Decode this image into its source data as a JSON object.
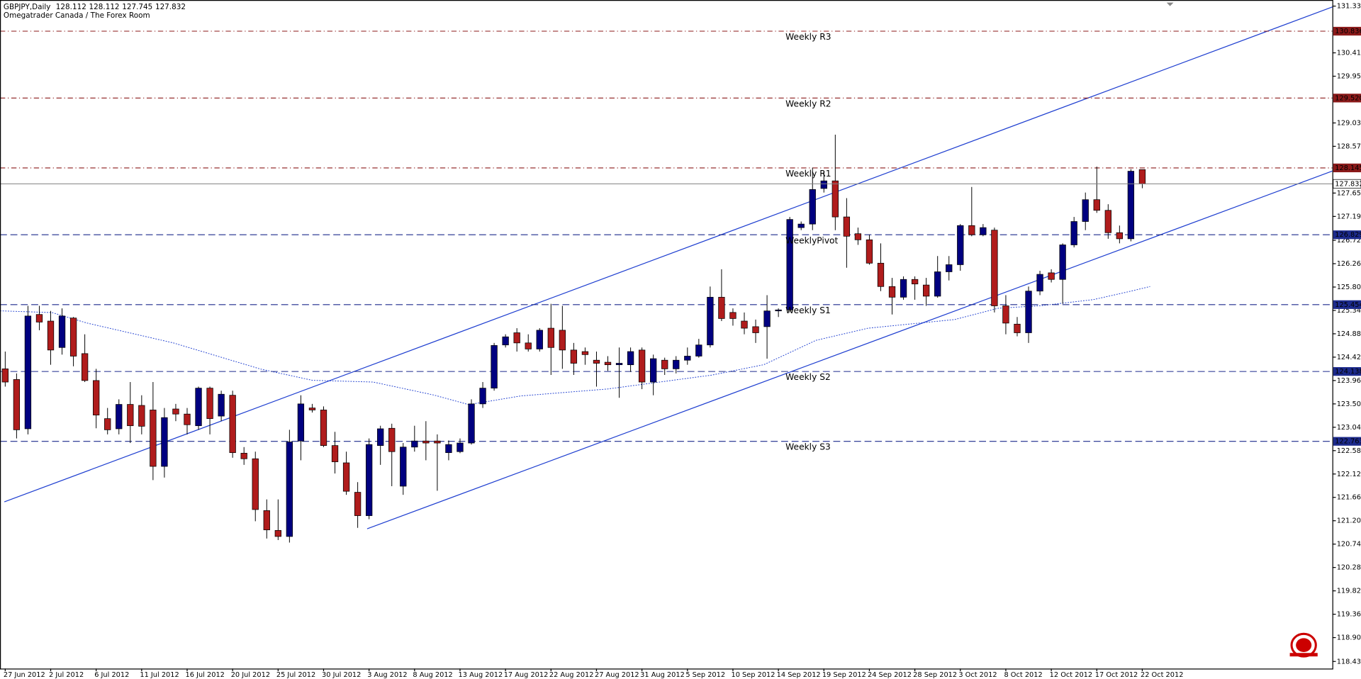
{
  "chart_data": {
    "type": "candlestick",
    "title": "GBPJPY,Daily",
    "subtitle": "Omegatrader Canada / The Forex Room",
    "up_color": "#000080",
    "down_color": "#b01c1c",
    "categories": [
      "27 Jun 2012",
      null,
      null,
      null,
      "2 Jul 2012",
      null,
      null,
      null,
      "6 Jul 2012",
      null,
      null,
      null,
      "11 Jul 2012",
      null,
      null,
      null,
      "16 Jul 2012",
      null,
      null,
      null,
      "20 Jul 2012",
      null,
      null,
      null,
      "25 Jul 2012",
      null,
      null,
      null,
      "30 Jul 2012",
      null,
      null,
      null,
      "3 Aug 2012",
      null,
      null,
      null,
      "8 Aug 2012",
      null,
      null,
      null,
      "13 Aug 2012",
      null,
      null,
      null,
      "17 Aug 2012",
      null,
      null,
      null,
      "22 Aug 2012",
      null,
      null,
      null,
      "27 Aug 2012",
      null,
      null,
      null,
      "31 Aug 2012",
      null,
      null,
      null,
      "5 Sep 2012",
      null,
      null,
      null,
      "10 Sep 2012",
      null,
      null,
      null,
      "14 Sep 2012",
      null,
      null,
      null,
      "19 Sep 2012",
      null,
      null,
      null,
      "24 Sep 2012",
      null,
      null,
      null,
      "28 Sep 2012",
      null,
      null,
      null,
      "3 Oct 2012",
      null,
      null,
      null,
      "8 Oct 2012",
      null,
      null,
      null,
      "12 Oct 2012",
      null,
      null,
      null,
      "17 Oct 2012",
      null,
      null,
      null,
      "22 Oct 2012"
    ],
    "open": [
      124.19,
      123.98,
      123.01,
      125.26,
      125.13,
      124.61,
      125.19,
      124.49,
      123.96,
      123.21,
      123.01,
      123.49,
      123.47,
      123.38,
      122.27,
      123.4,
      123.3,
      123.07,
      123.81,
      123.26,
      123.67,
      122.53,
      122.42,
      121.4,
      121.01,
      120.89,
      122.77,
      123.42,
      123.38,
      122.68,
      122.34,
      121.76,
      121.3,
      122.68,
      123.02,
      121.88,
      122.65,
      122.77,
      122.77,
      122.54,
      122.56,
      122.73,
      123.5,
      123.81,
      124.66,
      124.9,
      124.7,
      124.58,
      124.99,
      124.95,
      124.56,
      124.53,
      124.36,
      124.32,
      124.27,
      124.27,
      124.56,
      123.93,
      124.36,
      124.19,
      124.36,
      124.44,
      124.66,
      125.6,
      125.3,
      125.13,
      125.02,
      125.02,
      125.33,
      125.35,
      126.97,
      127.04,
      127.74,
      127.89,
      127.18,
      126.85,
      126.73,
      126.27,
      125.81,
      125.6,
      125.95,
      125.84,
      125.62,
      126.1,
      126.24,
      127.01,
      126.83,
      126.92,
      125.43,
      125.07,
      124.9,
      125.72,
      126.08,
      125.95,
      126.63,
      127.09,
      127.52,
      127.31,
      126.87,
      126.75,
      128.112
    ],
    "high": [
      124.53,
      124.1,
      125.43,
      125.43,
      125.33,
      125.38,
      125.21,
      124.87,
      124.19,
      123.42,
      123.59,
      123.93,
      123.67,
      123.93,
      123.42,
      123.5,
      123.42,
      123.84,
      123.84,
      123.76,
      123.76,
      122.65,
      122.56,
      121.62,
      121.62,
      122.99,
      123.67,
      123.5,
      123.45,
      122.95,
      122.56,
      121.96,
      122.82,
      123.07,
      123.11,
      122.73,
      123.07,
      123.16,
      122.9,
      122.78,
      122.82,
      123.59,
      123.93,
      124.7,
      124.87,
      124.99,
      124.87,
      124.99,
      125.47,
      125.43,
      124.7,
      124.61,
      124.53,
      124.44,
      124.61,
      124.61,
      124.61,
      124.47,
      124.41,
      124.44,
      124.61,
      124.78,
      125.81,
      126.15,
      125.38,
      125.3,
      125.16,
      125.64,
      125.38,
      127.18,
      127.09,
      128.15,
      128.07,
      128.8,
      127.55,
      126.97,
      126.83,
      126.66,
      125.98,
      126.01,
      126.01,
      125.98,
      126.41,
      126.41,
      127.04,
      127.77,
      127.04,
      126.97,
      125.64,
      125.21,
      125.81,
      126.12,
      126.15,
      126.66,
      127.18,
      127.66,
      128.17,
      127.43,
      127.01,
      128.12,
      128.112
    ],
    "low": [
      123.84,
      122.82,
      122.9,
      124.95,
      124.27,
      124.47,
      124.24,
      123.93,
      123.02,
      122.9,
      122.9,
      122.73,
      122.9,
      122.0,
      122.05,
      123.16,
      122.9,
      122.99,
      122.9,
      123.16,
      122.44,
      122.3,
      121.19,
      120.85,
      120.82,
      120.77,
      122.39,
      123.33,
      122.65,
      122.13,
      121.71,
      121.06,
      121.23,
      122.3,
      121.88,
      121.71,
      122.56,
      122.39,
      121.79,
      122.39,
      122.53,
      122.7,
      123.42,
      123.76,
      124.61,
      124.53,
      124.53,
      124.53,
      124.07,
      124.19,
      124.07,
      124.27,
      123.84,
      124.15,
      123.62,
      124.13,
      123.79,
      123.67,
      124.07,
      124.1,
      124.27,
      124.41,
      124.61,
      125.13,
      125.04,
      124.87,
      124.7,
      124.39,
      125.21,
      125.3,
      126.92,
      126.92,
      127.66,
      126.92,
      126.18,
      126.63,
      126.24,
      125.72,
      125.26,
      125.55,
      125.55,
      125.43,
      125.59,
      125.93,
      126.12,
      126.8,
      126.8,
      125.3,
      124.87,
      124.83,
      124.7,
      125.64,
      125.89,
      125.47,
      126.58,
      126.92,
      127.26,
      126.75,
      126.66,
      126.7,
      127.745
    ],
    "close": [
      123.93,
      122.99,
      125.23,
      125.11,
      124.56,
      125.23,
      124.44,
      123.96,
      123.28,
      122.99,
      123.49,
      123.07,
      123.06,
      122.27,
      123.23,
      123.3,
      123.09,
      123.81,
      123.21,
      123.69,
      122.54,
      122.42,
      121.42,
      121.02,
      120.89,
      122.75,
      123.5,
      123.38,
      122.68,
      122.36,
      121.78,
      121.3,
      122.7,
      123.01,
      122.56,
      122.65,
      122.77,
      122.73,
      122.73,
      122.7,
      122.73,
      123.5,
      123.81,
      124.65,
      124.82,
      124.7,
      124.58,
      124.95,
      124.61,
      124.56,
      124.3,
      124.47,
      124.3,
      124.27,
      124.3,
      124.53,
      123.93,
      124.39,
      124.19,
      124.36,
      124.44,
      124.66,
      125.6,
      125.18,
      125.18,
      124.99,
      124.9,
      125.33,
      125.35,
      127.13,
      127.04,
      127.72,
      127.89,
      127.18,
      126.8,
      126.73,
      126.27,
      125.81,
      125.6,
      125.95,
      125.86,
      125.62,
      126.1,
      126.24,
      127.01,
      126.83,
      126.97,
      125.43,
      125.09,
      124.9,
      125.72,
      126.05,
      125.95,
      126.63,
      127.09,
      127.52,
      127.31,
      126.87,
      126.75,
      128.08,
      127.832
    ],
    "ylim": [
      118.29,
      131.45
    ],
    "yticks": [
      {
        "value": 131.33,
        "label": "131.330"
      },
      {
        "value": 130.41,
        "label": "130.410"
      },
      {
        "value": 129.95,
        "label": "129.950"
      },
      {
        "value": 129.03,
        "label": "129.030"
      },
      {
        "value": 128.57,
        "label": "128.570"
      },
      {
        "value": 127.65,
        "label": "127.650"
      },
      {
        "value": 127.19,
        "label": "127.190"
      },
      {
        "value": 126.72,
        "label": "126.720"
      },
      {
        "value": 126.26,
        "label": "126.260"
      },
      {
        "value": 125.8,
        "label": "125.800"
      },
      {
        "value": 125.34,
        "label": "125.340"
      },
      {
        "value": 124.88,
        "label": "124.880"
      },
      {
        "value": 124.42,
        "label": "124.420"
      },
      {
        "value": 123.96,
        "label": "123.960"
      },
      {
        "value": 123.5,
        "label": "123.500"
      },
      {
        "value": 123.04,
        "label": "123.040"
      },
      {
        "value": 122.58,
        "label": "122.580"
      },
      {
        "value": 122.12,
        "label": "122.120"
      },
      {
        "value": 121.66,
        "label": "121.660"
      },
      {
        "value": 121.2,
        "label": "121.200"
      },
      {
        "value": 120.74,
        "label": "120.740"
      },
      {
        "value": 120.28,
        "label": "120.280"
      },
      {
        "value": 119.82,
        "label": "119.820"
      },
      {
        "value": 119.36,
        "label": "119.360"
      },
      {
        "value": 118.9,
        "label": "118.900"
      },
      {
        "value": 118.43,
        "label": "118.430"
      }
    ],
    "levels": [
      {
        "name": "Weekly R3",
        "value": 130.836,
        "color": "#8b1a1a",
        "line_style": "dash-dot"
      },
      {
        "name": "Weekly R2",
        "value": 129.52,
        "label": "129.520",
        "color": "#8b1a1a",
        "line_style": "dash-dot"
      },
      {
        "name": "Weekly R1",
        "value": 128.145,
        "color": "#8b1a1a",
        "line_style": "dash-dot"
      },
      {
        "name": "WeeklyPivot",
        "value": 126.829,
        "color": "#1c2a8c",
        "line_style": "dashed"
      },
      {
        "name": "Weekly S1",
        "value": 125.454,
        "color": "#1c2a8c",
        "line_style": "dashed"
      },
      {
        "name": "Weekly S2",
        "value": 124.138,
        "color": "#1c2a8c",
        "line_style": "dashed"
      },
      {
        "name": "Weekly S3",
        "value": 122.763,
        "color": "#1c2a8c",
        "line_style": "dashed"
      }
    ],
    "grid": false
  }
}
